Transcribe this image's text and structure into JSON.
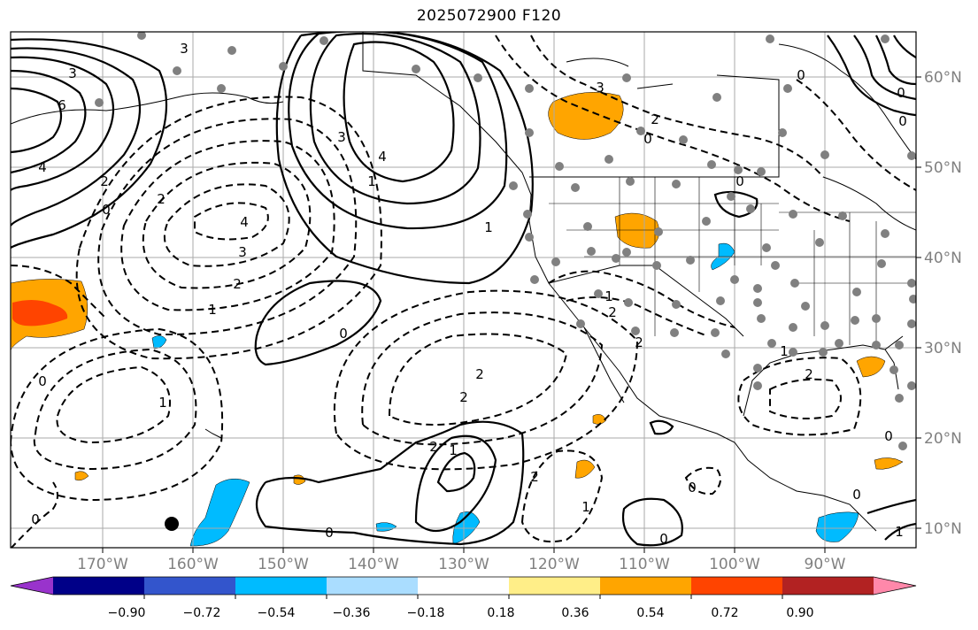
{
  "title": "2025072900 F120",
  "lon_labels": [
    "170°W",
    "160°W",
    "150°W",
    "140°W",
    "130°W",
    "120°W",
    "110°W",
    "100°W",
    "90°W"
  ],
  "lat_labels": [
    "60°N",
    "50°N",
    "40°N",
    "30°N",
    "20°N",
    "10°N"
  ],
  "colorbar": {
    "ticks": [
      "−0.90",
      "−0.72",
      "−0.54",
      "−0.36",
      "−0.18",
      "0.18",
      "0.36",
      "0.54",
      "0.72",
      "0.90"
    ],
    "colors": [
      "#9933cc",
      "#000088",
      "#3355cc",
      "#00bbff",
      "#aaddff",
      "#ffffff",
      "#ffee88",
      "#ffa500",
      "#ff4400",
      "#b22222",
      "#ff88aa"
    ]
  },
  "contour_labels": [
    "3",
    "6",
    "4",
    "2",
    "0",
    "2",
    "4",
    "3",
    "2",
    "1",
    "0",
    "0",
    "3",
    "4",
    "1",
    "1",
    "3",
    "2",
    "0",
    "1",
    "2",
    "2",
    "2",
    "2",
    "1",
    "2",
    "1",
    "0",
    "0",
    "0",
    "0",
    "2",
    "0",
    "1",
    "2",
    "1",
    "0",
    "0",
    "0",
    "0",
    "0",
    "3",
    "1"
  ],
  "colors": {
    "shade_orange": "#ffa500",
    "shade_red": "#ff4400",
    "shade_blue": "#00bbff",
    "station_dot": "#808080",
    "grid": "#aaaaaa"
  }
}
